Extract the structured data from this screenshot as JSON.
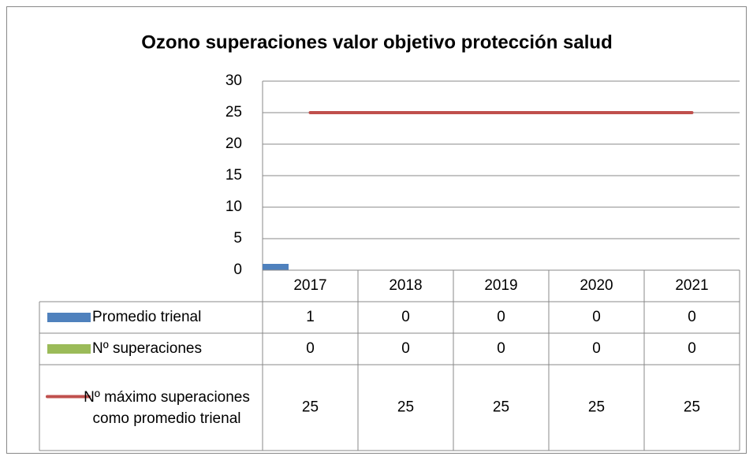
{
  "chart_data": {
    "type": "bar",
    "title": "Ozono superaciones valor objetivo protección salud",
    "categories": [
      "2017",
      "2018",
      "2019",
      "2020",
      "2021"
    ],
    "series": [
      {
        "name": "Promedio trienal",
        "type": "bar",
        "color": "#4f81bd",
        "values": [
          1,
          0,
          0,
          0,
          0
        ]
      },
      {
        "name": "Nº superaciones",
        "type": "bar",
        "color": "#9bbb59",
        "values": [
          0,
          0,
          0,
          0,
          0
        ]
      },
      {
        "name": "Nº máximo superaciones como promedio trienal",
        "type": "line",
        "color": "#c0504d",
        "values": [
          25,
          25,
          25,
          25,
          25
        ]
      }
    ],
    "ylim": [
      0,
      30
    ],
    "yticks": [
      0,
      5,
      10,
      15,
      20,
      25,
      30
    ],
    "grid": true,
    "data_table": true
  }
}
